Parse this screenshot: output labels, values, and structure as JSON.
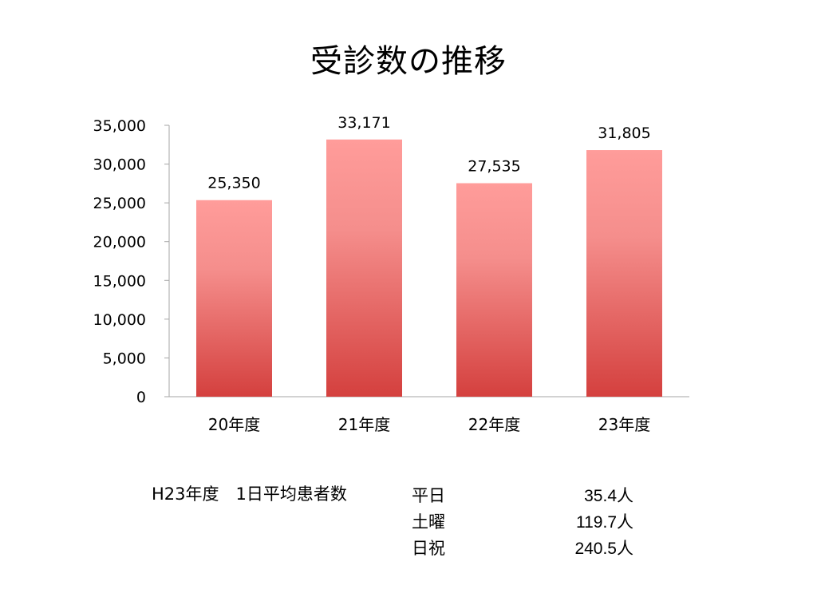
{
  "chart_data": {
    "type": "bar",
    "title": "受診数の推移",
    "categories": [
      "20年度",
      "21年度",
      "22年度",
      "23年度"
    ],
    "values": [
      25350,
      33171,
      27535,
      31805
    ],
    "value_labels": [
      "25,350",
      "33,171",
      "27,535",
      "31,805"
    ],
    "ylim": [
      0,
      35000
    ],
    "yticks": [
      0,
      5000,
      10000,
      15000,
      20000,
      25000,
      30000,
      35000
    ],
    "ytick_labels": [
      "0",
      "5,000",
      "10,000",
      "15,000",
      "20,000",
      "25,000",
      "30,000",
      "35,000"
    ],
    "xlabel": "",
    "ylabel": "",
    "grid": false,
    "colors": {
      "bar_top": "#FF9C9A",
      "bar_bottom": "#D4403E",
      "axis": "#A6A6A6"
    }
  },
  "notes": {
    "title": "H23年度　1日平均患者数",
    "rows": [
      {
        "label": "平日",
        "value": "35.4人"
      },
      {
        "label": "土曜",
        "value": "119.7人"
      },
      {
        "label": "日祝",
        "value": "240.5人"
      }
    ]
  }
}
